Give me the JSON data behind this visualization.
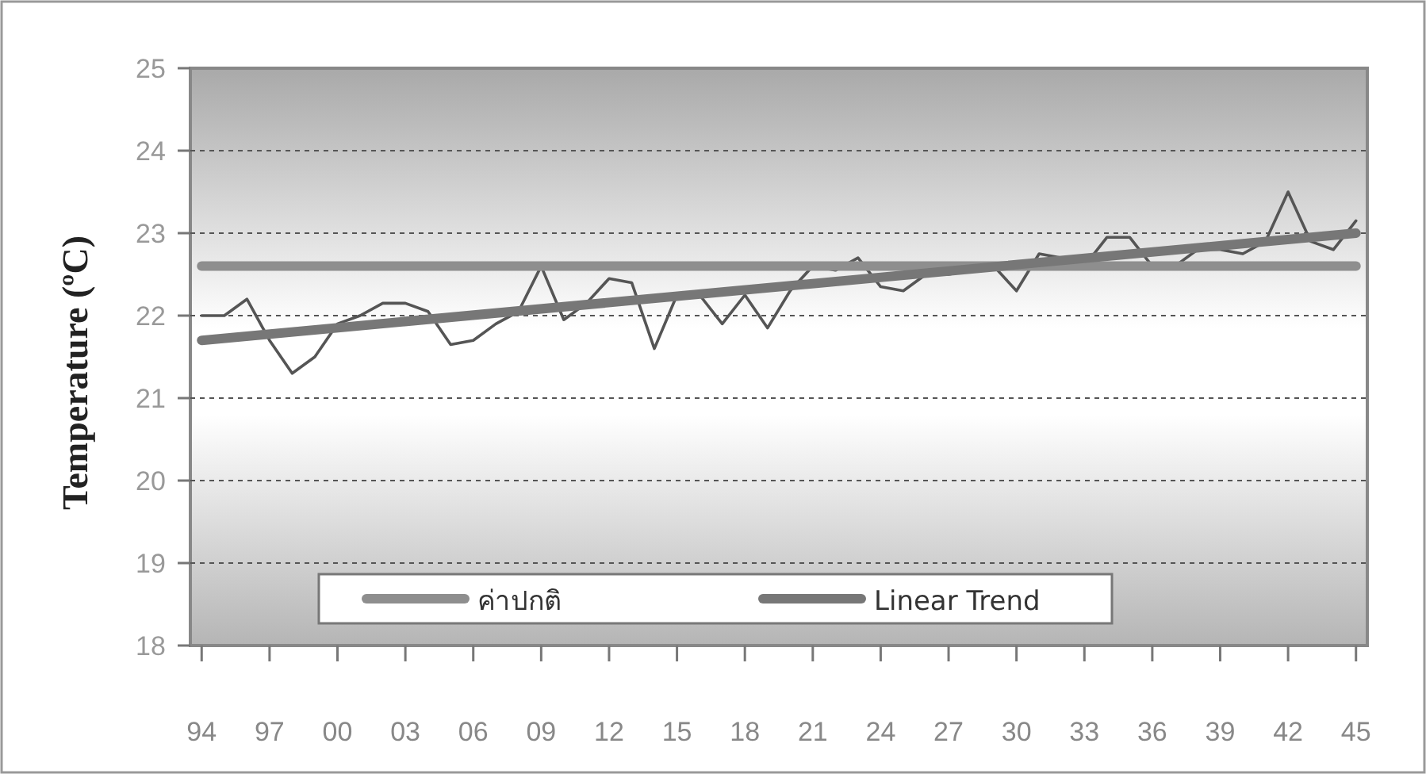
{
  "chart_data": {
    "type": "line",
    "ylabel": "Temperature (ºC)",
    "categories": [
      "94",
      null,
      null,
      "97",
      null,
      null,
      "00",
      null,
      null,
      "03",
      null,
      null,
      "06",
      null,
      null,
      "09",
      null,
      null,
      "12",
      null,
      null,
      "15",
      null,
      null,
      "18",
      null,
      null,
      "21",
      null,
      null,
      "24",
      null,
      null,
      "27",
      null,
      null,
      "30",
      null,
      null,
      "33",
      null,
      null,
      "36",
      null,
      null,
      "39",
      null,
      null,
      "42",
      null,
      null,
      "45"
    ],
    "series": [
      {
        "color": "#555555",
        "values": [
          22.0,
          22.0,
          22.2,
          21.7,
          21.3,
          21.5,
          21.9,
          22.0,
          22.15,
          22.15,
          22.05,
          21.65,
          21.7,
          21.9,
          22.05,
          22.6,
          21.95,
          22.15,
          22.45,
          22.4,
          21.6,
          22.25,
          22.25,
          21.9,
          22.25,
          21.85,
          22.3,
          22.6,
          22.55,
          22.7,
          22.35,
          22.3,
          22.5,
          22.5,
          22.55,
          22.6,
          22.3,
          22.75,
          22.7,
          22.6,
          22.95,
          22.95,
          22.6,
          22.6,
          22.8,
          22.8,
          22.75,
          22.9,
          23.5,
          22.9,
          22.8,
          23.15
        ]
      },
      {
        "name": "ค่าปกติ",
        "color": "#8e8e8e",
        "x": [
          "94",
          "45"
        ],
        "values": [
          22.6,
          22.6
        ]
      },
      {
        "name": "Linear Trend",
        "color": "#777777",
        "x": [
          "94",
          "45"
        ],
        "values": [
          21.7,
          23.0
        ]
      }
    ],
    "ylim": [
      18,
      25
    ],
    "yticks": [
      18,
      19,
      20,
      21,
      22,
      23,
      24,
      25
    ],
    "grid": "y",
    "legend": "bottom"
  }
}
